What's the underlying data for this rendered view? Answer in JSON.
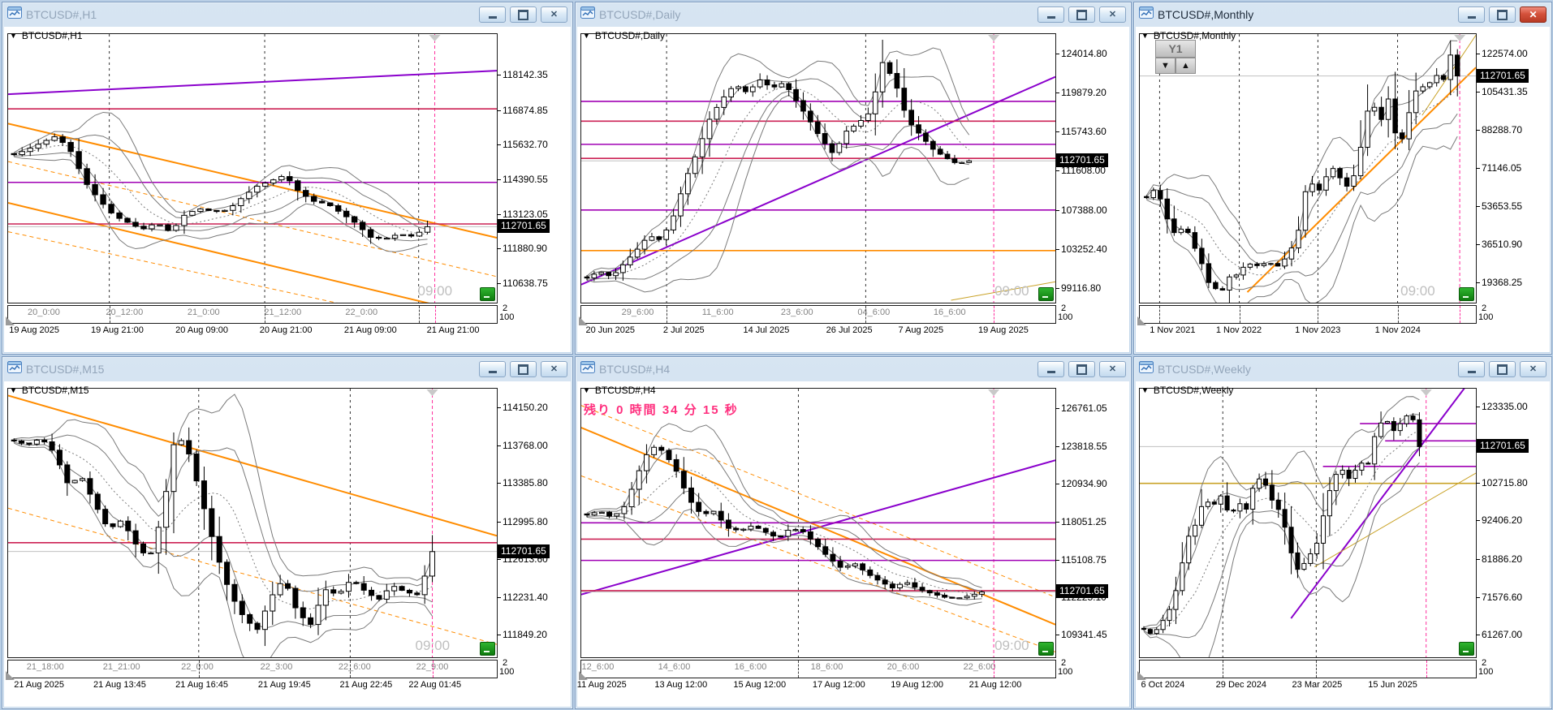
{
  "shared": {
    "dropdown_glyph": "▼",
    "close_glyph": "✕",
    "scale_top": "2",
    "scale_bottom": "100",
    "colors": {
      "crimson": "#cc2255",
      "purple": "#a000b4",
      "violet": "#8a00cc",
      "orange": "#ff8c00",
      "gold": "#c9a227",
      "pink": "#ff2e9e",
      "silver": "#c0c0c0",
      "band_gray": "#7a7a7a",
      "grid": "#333333",
      "badge_bg": "#000000",
      "badge_fg": "#ffffff",
      "hint_gray": "#bfbfbf",
      "green_button": "#189818",
      "up_body": "#ffffff",
      "down_body": "#000000"
    }
  },
  "chart_data": [
    {
      "type": "candlestick",
      "title": "BTCUSD#,H1",
      "symbol_label": "BTCUSD#,H1",
      "active": false,
      "ylim": [
        109960,
        119650
      ],
      "yticks": [
        {
          "label": "118142.35",
          "price": 118142.35
        },
        {
          "label": "116874.85",
          "price": 116874.85
        },
        {
          "label": "115632.70",
          "price": 115632.7
        },
        {
          "label": "114390.55",
          "price": 114390.55
        },
        {
          "label": "113123.05",
          "price": 113123.05
        },
        {
          "label": "111880.90",
          "price": 111880.9
        },
        {
          "label": "110638.75",
          "price": 110638.75
        }
      ],
      "badge": {
        "label": "112701.65",
        "price": 112701.65
      },
      "time_hint": "09:00",
      "hint_dx": -20,
      "vlines": [
        0.207,
        0.525,
        0.84
      ],
      "pink_x": 0.873,
      "hlines": [
        {
          "p": 116950,
          "c": "crimson"
        },
        {
          "p": 114300,
          "c": "purple"
        },
        {
          "p": 112800,
          "c": "crimson"
        },
        {
          "p": 112701.65,
          "c": "silver"
        }
      ],
      "tlines": [
        [
          0,
          117480,
          1,
          118330,
          "violet",
          2,
          0
        ],
        [
          0,
          116420,
          1,
          112300,
          "orange",
          2,
          0
        ],
        [
          0,
          113560,
          1,
          109350,
          "orange",
          2,
          0
        ],
        [
          0,
          115050,
          1,
          110900,
          "orange",
          1,
          1
        ],
        [
          0,
          112520,
          1,
          108700,
          "orange",
          1,
          1
        ]
      ],
      "candles": {
        "n": 52,
        "x0": 0.012,
        "x1": 0.858,
        "path": [
          115300,
          115500,
          115750,
          115980,
          115400,
          114300,
          113650,
          113100,
          112850,
          112600,
          112850,
          112500,
          113150,
          113350,
          113250,
          113300,
          113750,
          114150,
          114350,
          114560,
          113950,
          113620,
          113520,
          113170,
          112820,
          112320,
          112260,
          112440,
          112350,
          112700
        ]
      },
      "band_labels": [
        {
          "t": "20_0:00",
          "x": 0.073
        },
        {
          "t": "20_12:00",
          "x": 0.238
        },
        {
          "t": "21_0:00",
          "x": 0.4
        },
        {
          "t": "21_12:00",
          "x": 0.562
        },
        {
          "t": "22_0:00",
          "x": 0.723
        }
      ],
      "date_labels": [
        {
          "t": "19 Aug 2025",
          "x": 0.055
        },
        {
          "t": "19 Aug 21:00",
          "x": 0.225
        },
        {
          "t": "20 Aug 09:00",
          "x": 0.398
        },
        {
          "t": "20 Aug 21:00",
          "x": 0.57
        },
        {
          "t": "21 Aug 09:00",
          "x": 0.743
        },
        {
          "t": "21 Aug 21:00",
          "x": 0.912
        }
      ]
    },
    {
      "type": "candlestick",
      "title": "BTCUSD#,Daily",
      "symbol_label": "BTCUSD#,Daily",
      "active": false,
      "ylim": [
        97690,
        126120
      ],
      "yticks": [
        {
          "label": "124014.80",
          "price": 124014.8
        },
        {
          "label": "119879.20",
          "price": 119879.2
        },
        {
          "label": "115743.60",
          "price": 115743.6
        },
        {
          "label": "111608.00",
          "price": 111608.0
        },
        {
          "label": "107388.00",
          "price": 107388.0
        },
        {
          "label": "103252.40",
          "price": 103252.4
        },
        {
          "label": "99116.80",
          "price": 99116.8
        }
      ],
      "badge": {
        "label": "112701.65",
        "price": 112701.65
      },
      "time_hint": "09:00",
      "hint_dx": 2,
      "vlines": [
        0.18,
        0.6
      ],
      "pink_x": 0.87,
      "hlines": [
        {
          "p": 119000,
          "c": "purple"
        },
        {
          "p": 116900,
          "c": "crimson"
        },
        {
          "p": 114450,
          "c": "purple"
        },
        {
          "p": 112960,
          "c": "crimson"
        },
        {
          "p": 112701.65,
          "c": "silver"
        },
        {
          "p": 107500,
          "c": "purple"
        },
        {
          "p": 103200,
          "c": "orange"
        }
      ],
      "tlines": [
        [
          0,
          99600,
          1,
          121600,
          "violet",
          2,
          0
        ],
        [
          0.78,
          97950,
          1,
          99900,
          "gold",
          1,
          0
        ]
      ],
      "candles": {
        "n": 54,
        "x0": 0.012,
        "x1": 0.818,
        "path": [
          100300,
          101000,
          100400,
          101800,
          103200,
          104800,
          104300,
          106800,
          110800,
          113800,
          117300,
          119300,
          120800,
          119900,
          121300,
          120400,
          121000,
          119000,
          117100,
          115000,
          113400,
          115800,
          116700,
          117900,
          123200,
          121000,
          117000,
          115500,
          114000,
          113100,
          112400,
          112700
        ]
      },
      "band_labels": [
        {
          "t": "29_6:00",
          "x": 0.119
        },
        {
          "t": "11_6:00",
          "x": 0.288
        },
        {
          "t": "23_6:00",
          "x": 0.455
        },
        {
          "t": "04_6:00",
          "x": 0.617
        },
        {
          "t": "16_6:00",
          "x": 0.777
        }
      ],
      "date_labels": [
        {
          "t": "20 Jun 2025",
          "x": 0.063
        },
        {
          "t": "2 Jul 2025",
          "x": 0.218
        },
        {
          "t": "14 Jul 2025",
          "x": 0.392
        },
        {
          "t": "26 Jul 2025",
          "x": 0.567
        },
        {
          "t": "7 Aug 2025",
          "x": 0.718
        },
        {
          "t": "19 Aug 2025",
          "x": 0.892
        }
      ]
    },
    {
      "type": "candlestick",
      "title": "BTCUSD#,Monthly",
      "symbol_label": "BTCUSD#,Monthly",
      "active": true,
      "tool_button": "Y1",
      "arrow_down": "▼",
      "arrow_up": "▲",
      "ylim": [
        10790,
        131510
      ],
      "yticks": [
        {
          "label": "122574.00",
          "price": 122574.0
        },
        {
          "label": "105431.35",
          "price": 105431.35
        },
        {
          "label": "88288.70",
          "price": 88288.7
        },
        {
          "label": "71146.05",
          "price": 71146.05
        },
        {
          "label": "53653.55",
          "price": 53653.55
        },
        {
          "label": "36510.90",
          "price": 36510.9
        },
        {
          "label": "19368.25",
          "price": 19368.25
        }
      ],
      "badge": {
        "label": "112701.65",
        "price": 112701.65
      },
      "time_hint": "09:00",
      "hint_dx": -72,
      "vlines": [
        0.059,
        0.296,
        0.53,
        0.767
      ],
      "pink_x": 0.952,
      "hlines": [
        {
          "p": 112701.65,
          "c": "silver"
        }
      ],
      "tlines": [
        [
          0.32,
          15500,
          1,
          116500,
          "orange",
          2,
          0
        ],
        [
          0.84,
          95000,
          1,
          131000,
          "gold",
          1,
          0
        ]
      ],
      "candles": {
        "n": 46,
        "x0": 0.02,
        "x1": 0.945,
        "path": [
          58000,
          61500,
          56500,
          45500,
          40500,
          46500,
          37500,
          31500,
          20500,
          17200,
          16300,
          22800,
          23300,
          27800,
          28300,
          26800,
          29800,
          26300,
          29300,
          34300,
          42500,
          61500,
          64500,
          60500,
          70500,
          71500,
          62500,
          64000,
          75500,
          96500,
          99000,
          93000,
          103500,
          83000,
          85000,
          103000,
          108500,
          107000,
          114500,
          108500,
          123000,
          112700
        ]
      },
      "band_labels": [],
      "date_labels": [
        {
          "t": "1 Nov 2021",
          "x": 0.1
        },
        {
          "t": "1 Nov 2022",
          "x": 0.297
        },
        {
          "t": "1 Nov 2023",
          "x": 0.532
        },
        {
          "t": "1 Nov 2024",
          "x": 0.77
        }
      ]
    },
    {
      "type": "candlestick",
      "title": "BTCUSD#,M15",
      "symbol_label": "BTCUSD#,M15",
      "active": false,
      "ylim": [
        111630,
        114350
      ],
      "yticks": [
        {
          "label": "114150.20",
          "price": 114150.2
        },
        {
          "label": "113768.00",
          "price": 113768.0
        },
        {
          "label": "113385.80",
          "price": 113385.8
        },
        {
          "label": "112995.80",
          "price": 112995.8
        },
        {
          "label": "112613.60",
          "price": 112613.6
        },
        {
          "label": "112231.40",
          "price": 112231.4
        },
        {
          "label": "111849.20",
          "price": 111849.2
        }
      ],
      "badge": {
        "label": "112701.65",
        "price": 112701.65
      },
      "time_hint": "09:00",
      "hint_dx": -20,
      "vlines": [
        0.39,
        0.7
      ],
      "pink_x": 0.868,
      "hlines": [
        {
          "p": 112790,
          "c": "crimson"
        },
        {
          "p": 112701.65,
          "c": "silver"
        }
      ],
      "tlines": [
        [
          0,
          114280,
          1,
          112860,
          "orange",
          2,
          0
        ],
        [
          0,
          113140,
          1,
          111760,
          "orange",
          1,
          1
        ]
      ],
      "candles": {
        "n": 56,
        "x0": 0.012,
        "x1": 0.868,
        "path": [
          113820,
          113780,
          113850,
          113700,
          113380,
          113460,
          113180,
          112920,
          113020,
          112780,
          112620,
          113080,
          113920,
          113680,
          113180,
          112680,
          112280,
          112040,
          111900,
          112230,
          112430,
          112080,
          111960,
          112320,
          112260,
          112420,
          112300,
          112210,
          112360,
          112290,
          112260,
          112700
        ]
      },
      "band_labels": [
        {
          "t": "21_18:00",
          "x": 0.076
        },
        {
          "t": "21_21:00",
          "x": 0.232
        },
        {
          "t": "22_0:00",
          "x": 0.387
        },
        {
          "t": "22_3:00",
          "x": 0.549
        },
        {
          "t": "22_6:00",
          "x": 0.709
        },
        {
          "t": "22_9:00",
          "x": 0.868
        }
      ],
      "date_labels": [
        {
          "t": "21 Aug 2025",
          "x": 0.065
        },
        {
          "t": "21 Aug 13:45",
          "x": 0.23
        },
        {
          "t": "21 Aug 16:45",
          "x": 0.398
        },
        {
          "t": "21 Aug 19:45",
          "x": 0.567
        },
        {
          "t": "21 Aug 22:45",
          "x": 0.734
        },
        {
          "t": "22 Aug 01:45",
          "x": 0.875
        }
      ]
    },
    {
      "type": "candlestick",
      "title": "BTCUSD#,H4",
      "symbol_label": "BTCUSD#,H4",
      "active": false,
      "countdown": "残り 0 時間 34 分 15 秒",
      "ylim": [
        107690,
        128290
      ],
      "yticks": [
        {
          "label": "126761.05",
          "price": 126761.05
        },
        {
          "label": "123818.55",
          "price": 123818.55
        },
        {
          "label": "120934.90",
          "price": 120934.9
        },
        {
          "label": "118051.25",
          "price": 118051.25
        },
        {
          "label": "115108.75",
          "price": 115108.75
        },
        {
          "label": "112225.10",
          "price": 112225.1
        },
        {
          "label": "109341.45",
          "price": 109341.45
        }
      ],
      "badge": {
        "label": "112701.65",
        "price": 112701.65
      },
      "time_hint": "09:00",
      "hint_dx": 2,
      "vlines": [
        0.458
      ],
      "pink_x": 0.87,
      "hlines": [
        {
          "p": 118000,
          "c": "purple"
        },
        {
          "p": 116750,
          "c": "crimson"
        },
        {
          "p": 115120,
          "c": "purple"
        },
        {
          "p": 112800,
          "c": "crimson"
        },
        {
          "p": 112701.65,
          "c": "silver"
        }
      ],
      "tlines": [
        [
          0,
          112500,
          1,
          122800,
          "violet",
          2,
          0
        ],
        [
          0,
          125300,
          1,
          110200,
          "orange",
          2,
          0
        ],
        [
          0,
          127000,
          1,
          112300,
          "orange",
          1,
          1
        ],
        [
          0,
          121600,
          1,
          108100,
          "orange",
          1,
          1
        ]
      ],
      "candles": {
        "n": 54,
        "x0": 0.012,
        "x1": 0.845,
        "path": [
          118600,
          118900,
          118400,
          119300,
          121800,
          123900,
          123500,
          122000,
          119800,
          118600,
          118900,
          117600,
          117400,
          117800,
          117300,
          116800,
          117600,
          117300,
          116300,
          115300,
          114500,
          114900,
          114100,
          113500,
          113000,
          113500,
          112900,
          112600,
          112300,
          112200,
          112400,
          112700
        ]
      },
      "band_labels": [
        {
          "t": "12_6:00",
          "x": 0.035
        },
        {
          "t": "14_6:00",
          "x": 0.196
        },
        {
          "t": "16_6:00",
          "x": 0.357
        },
        {
          "t": "18_6:00",
          "x": 0.518
        },
        {
          "t": "20_6:00",
          "x": 0.679
        },
        {
          "t": "22_6:00",
          "x": 0.84
        }
      ],
      "date_labels": [
        {
          "t": "11 Aug 2025",
          "x": 0.045
        },
        {
          "t": "13 Aug 12:00",
          "x": 0.212
        },
        {
          "t": "15 Aug 12:00",
          "x": 0.378
        },
        {
          "t": "17 Aug 12:00",
          "x": 0.545
        },
        {
          "t": "19 Aug 12:00",
          "x": 0.71
        },
        {
          "t": "21 Aug 12:00",
          "x": 0.875
        }
      ]
    },
    {
      "type": "candlestick",
      "title": "BTCUSD#,Weekly",
      "symbol_label": "BTCUSD#,Weekly",
      "active": false,
      "ylim": [
        55420,
        128450
      ],
      "yticks": [
        {
          "label": "123335.00",
          "price": 123335.0
        },
        {
          "label": "102715.80",
          "price": 102715.8
        },
        {
          "label": "92406.20",
          "price": 92406.2
        },
        {
          "label": "81886.20",
          "price": 81886.2
        },
        {
          "label": "71576.60",
          "price": 71576.6
        },
        {
          "label": "61267.00",
          "price": 61267.0
        }
      ],
      "badge": {
        "label": "112701.65",
        "price": 112701.65
      },
      "time_hint": null,
      "hint_dx": 0,
      "vlines": [
        0.247,
        0.525
      ],
      "pink_x": 0.852,
      "hlines": [
        {
          "p": 118950,
          "c": "purple",
          "x0": 0.655
        },
        {
          "p": 114250,
          "c": "purple",
          "x0": 0.73
        },
        {
          "p": 112701.65,
          "c": "silver"
        },
        {
          "p": 107300,
          "c": "purple",
          "x0": 0.545
        },
        {
          "p": 102715,
          "c": "gold"
        }
      ],
      "tlines": [
        [
          0.45,
          66000,
          0.99,
          131500,
          "violet",
          2,
          0
        ],
        [
          0.52,
          80000,
          1,
          105500,
          "gold",
          1,
          0
        ]
      ],
      "candles": {
        "n": 44,
        "x0": 0.012,
        "x1": 0.832,
        "path": [
          63000,
          61500,
          64500,
          68500,
          75500,
          87500,
          91500,
          98500,
          96500,
          99500,
          93500,
          97500,
          95500,
          104500,
          103000,
          97500,
          94500,
          84500,
          78500,
          82500,
          85500,
          95500,
          104500,
          106500,
          103500,
          108500,
          107500,
          117500,
          120500,
          117000,
          119500,
          122500,
          112700
        ]
      },
      "band_labels": [],
      "date_labels": [
        {
          "t": "6 Oct 2024",
          "x": 0.071
        },
        {
          "t": "29 Dec 2024",
          "x": 0.304
        },
        {
          "t": "23 Mar 2025",
          "x": 0.53
        },
        {
          "t": "15 Jun 2025",
          "x": 0.755
        }
      ]
    }
  ]
}
